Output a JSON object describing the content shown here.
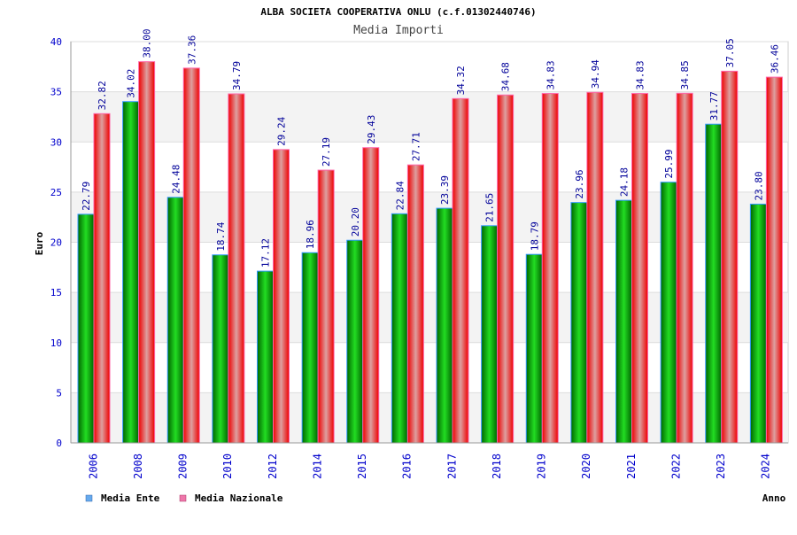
{
  "chart_data": {
    "type": "bar",
    "title": "ALBA SOCIETA COOPERATIVA ONLU (c.f.01302440746)",
    "subtitle": "Media Importi",
    "xlabel": "Anno",
    "ylabel": "Euro",
    "ylim": [
      0,
      40
    ],
    "yticks": [
      "0",
      "5",
      "10",
      "15",
      "20",
      "25",
      "30",
      "35",
      "40"
    ],
    "grid": true,
    "legend_position": "bottom-left",
    "categories": [
      "2006",
      "2008",
      "2009",
      "2010",
      "2012",
      "2014",
      "2015",
      "2016",
      "2017",
      "2018",
      "2019",
      "2020",
      "2021",
      "2022",
      "2023",
      "2024"
    ],
    "series": [
      {
        "name": "Media Ente",
        "color": "#00aa00",
        "legend_color": "#66aaee",
        "values": [
          22.79,
          34.02,
          24.48,
          18.74,
          17.12,
          18.96,
          20.2,
          22.84,
          23.39,
          21.65,
          18.79,
          23.96,
          24.18,
          25.99,
          31.77,
          23.8
        ]
      },
      {
        "name": "Media Nazionale",
        "color": "#ee0000",
        "legend_color": "#ee77aa",
        "values": [
          32.82,
          38.0,
          37.36,
          34.79,
          29.24,
          27.19,
          29.43,
          27.71,
          34.32,
          34.68,
          34.83,
          34.94,
          34.83,
          34.85,
          37.05,
          36.46
        ]
      }
    ]
  }
}
